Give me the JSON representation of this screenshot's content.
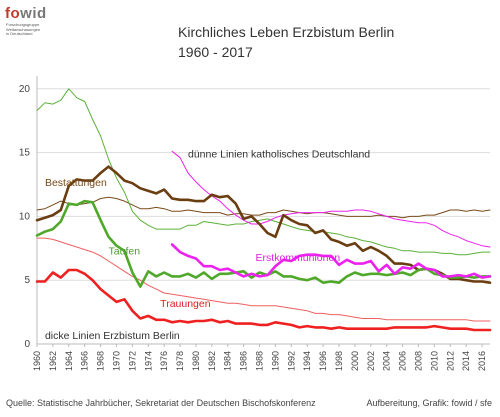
{
  "logo": {
    "text_f": "f",
    "text_o": "o",
    "text_w": "wid",
    "subtitle_lines": [
      "Forschungsgruppe",
      "Weltanschauungen",
      "in Deutschland"
    ]
  },
  "header": {
    "title": "Kirchliches Leben Erzbistum Berlin",
    "subtitle": "1960 - 2017"
  },
  "footer": {
    "source": "Quelle: Statistische Jahrbücher, Sekretariat der Deutschen Bischofskonferenz",
    "credit": "Aufbereitung, Grafik: fowid / sfe"
  },
  "chart_data": {
    "type": "line",
    "xlim": [
      1960,
      2017
    ],
    "ylim": [
      0,
      21
    ],
    "yticks": [
      0,
      5,
      10,
      15,
      20
    ],
    "xticks": [
      1960,
      1962,
      1964,
      1966,
      1968,
      1970,
      1972,
      1974,
      1976,
      1978,
      1980,
      1982,
      1984,
      1986,
      1988,
      1990,
      1992,
      1994,
      1996,
      1998,
      2000,
      2002,
      2004,
      2006,
      2008,
      2010,
      2012,
      2014,
      2016
    ],
    "grid": "horizontal",
    "annotations": [
      {
        "text": "dünne Linien katholisches Deutschland",
        "x": 1979,
        "y": 14.6,
        "color": "#333333"
      },
      {
        "text": "dicke Linien Erzbistum Berlin",
        "x": 1961,
        "y": 0.4,
        "color": "#333333"
      },
      {
        "text": "Bestattungen",
        "x": 1961,
        "y": 12.4,
        "color": "#7a4a1a"
      },
      {
        "text": "Taufen",
        "x": 1969,
        "y": 7.0,
        "color": "#4a9a2a"
      },
      {
        "text": "Erstkommunionen",
        "x": 1987.5,
        "y": 6.5,
        "color": "#e020e0"
      },
      {
        "text": "Trauungen",
        "x": 1975.5,
        "y": 2.9,
        "color": "#e02020"
      }
    ],
    "series": [
      {
        "key": "bestattungen_berlin",
        "color": "#6b3e12",
        "width": 2.6,
        "x": [
          1960,
          1961,
          1962,
          1963,
          1964,
          1965,
          1966,
          1967,
          1968,
          1969,
          1970,
          1971,
          1972,
          1973,
          1974,
          1975,
          1976,
          1977,
          1978,
          1979,
          1980,
          1981,
          1982,
          1983,
          1984,
          1985,
          1986,
          1987,
          1988,
          1989,
          1990,
          1991,
          1992,
          1993,
          1994,
          1995,
          1996,
          1997,
          1998,
          1999,
          2000,
          2001,
          2002,
          2003,
          2004,
          2005,
          2006,
          2007,
          2008,
          2009,
          2010,
          2011,
          2012,
          2013,
          2014,
          2015,
          2016,
          2017
        ],
        "y": [
          9.7,
          9.9,
          10.1,
          10.5,
          12.4,
          12.9,
          12.8,
          12.8,
          13.4,
          13.9,
          13.4,
          12.8,
          12.6,
          12.2,
          12.0,
          11.8,
          12.1,
          11.4,
          11.3,
          11.3,
          11.2,
          11.2,
          11.7,
          11.5,
          11.6,
          11.0,
          9.8,
          10.0,
          9.4,
          8.7,
          8.4,
          10.1,
          9.7,
          9.4,
          9.3,
          8.7,
          8.9,
          8.2,
          8.0,
          7.7,
          7.9,
          7.3,
          7.6,
          7.3,
          6.9,
          6.3,
          6.3,
          6.2,
          5.8,
          5.9,
          5.8,
          5.5,
          5.1,
          5.1,
          5.0,
          4.9,
          4.9,
          4.8
        ]
      },
      {
        "key": "taufen_berlin",
        "color": "#4fa82a",
        "width": 2.6,
        "x": [
          1960,
          1961,
          1962,
          1963,
          1964,
          1965,
          1966,
          1967,
          1968,
          1969,
          1970,
          1971,
          1972,
          1973,
          1974,
          1975,
          1976,
          1977,
          1978,
          1979,
          1980,
          1981,
          1982,
          1983,
          1984,
          1985,
          1986,
          1987,
          1988,
          1989,
          1990,
          1991,
          1992,
          1993,
          1994,
          1995,
          1996,
          1997,
          1998,
          1999,
          2000,
          2001,
          2002,
          2003,
          2004,
          2005,
          2006,
          2007,
          2008,
          2009,
          2010,
          2011,
          2012,
          2013,
          2014,
          2015,
          2016,
          2017
        ],
        "y": [
          8.5,
          8.8,
          9.0,
          9.6,
          11.0,
          10.9,
          11.2,
          11.1,
          9.7,
          8.4,
          7.7,
          7.3,
          5.6,
          4.5,
          5.7,
          5.3,
          5.6,
          5.3,
          5.3,
          5.5,
          5.2,
          5.6,
          5.1,
          5.5,
          5.5,
          5.6,
          5.7,
          5.2,
          5.6,
          5.4,
          5.7,
          5.3,
          5.3,
          5.1,
          5.0,
          5.2,
          4.8,
          4.9,
          4.8,
          5.3,
          5.6,
          5.4,
          5.5,
          5.5,
          5.4,
          5.5,
          5.6,
          5.4,
          5.8,
          5.9,
          5.5,
          5.4,
          5.2,
          5.2,
          5.3,
          5.2,
          5.3,
          5.3
        ]
      },
      {
        "key": "erstkommunionen_berlin",
        "color": "#ee22ee",
        "width": 2.6,
        "x": [
          1977,
          1978,
          1979,
          1980,
          1981,
          1982,
          1983,
          1984,
          1985,
          1986,
          1987,
          1988,
          1989,
          1990,
          1991,
          1992,
          1993,
          1994,
          1995,
          1996,
          1997,
          1998,
          1999,
          2000,
          2001,
          2002,
          2003,
          2004,
          2005,
          2006,
          2007,
          2008,
          2009,
          2010,
          2011,
          2012,
          2013,
          2014,
          2015,
          2016,
          2017
        ],
        "y": [
          7.8,
          7.2,
          6.9,
          6.7,
          6.1,
          6.1,
          5.8,
          5.9,
          5.6,
          5.3,
          5.5,
          5.3,
          5.4,
          6.1,
          6.6,
          6.5,
          6.9,
          7.0,
          7.0,
          6.9,
          6.9,
          6.2,
          6.6,
          6.3,
          6.3,
          6.5,
          5.7,
          6.2,
          5.5,
          6.0,
          5.9,
          6.3,
          5.9,
          5.8,
          5.3,
          5.3,
          5.4,
          5.3,
          5.5,
          5.2,
          5.3
        ]
      },
      {
        "key": "trauungen_berlin",
        "color": "#ee2020",
        "width": 2.6,
        "x": [
          1960,
          1961,
          1962,
          1963,
          1964,
          1965,
          1966,
          1967,
          1968,
          1969,
          1970,
          1971,
          1972,
          1973,
          1974,
          1975,
          1976,
          1977,
          1978,
          1979,
          1980,
          1981,
          1982,
          1983,
          1984,
          1985,
          1986,
          1987,
          1988,
          1989,
          1990,
          1991,
          1992,
          1993,
          1994,
          1995,
          1996,
          1997,
          1998,
          1999,
          2000,
          2001,
          2002,
          2003,
          2004,
          2005,
          2006,
          2007,
          2008,
          2009,
          2010,
          2011,
          2012,
          2013,
          2014,
          2015,
          2016,
          2017
        ],
        "y": [
          4.9,
          4.9,
          5.6,
          5.2,
          5.8,
          5.8,
          5.5,
          5.0,
          4.3,
          3.8,
          3.3,
          3.5,
          2.6,
          2.0,
          2.2,
          1.9,
          1.9,
          1.7,
          1.8,
          1.7,
          1.8,
          1.8,
          1.9,
          1.7,
          1.8,
          1.6,
          1.6,
          1.6,
          1.5,
          1.5,
          1.7,
          1.6,
          1.5,
          1.3,
          1.4,
          1.3,
          1.3,
          1.2,
          1.3,
          1.2,
          1.2,
          1.2,
          1.2,
          1.2,
          1.2,
          1.3,
          1.3,
          1.3,
          1.3,
          1.3,
          1.4,
          1.3,
          1.2,
          1.2,
          1.2,
          1.1,
          1.1,
          1.1
        ]
      },
      {
        "key": "bestattungen_de",
        "color": "#7a4a1a",
        "width": 1,
        "x": [
          1960,
          1961,
          1962,
          1963,
          1964,
          1965,
          1966,
          1967,
          1968,
          1969,
          1970,
          1971,
          1972,
          1973,
          1974,
          1975,
          1976,
          1977,
          1978,
          1979,
          1980,
          1981,
          1982,
          1983,
          1984,
          1985,
          1986,
          1987,
          1988,
          1989,
          1990,
          1991,
          1992,
          1993,
          1994,
          1995,
          1996,
          1997,
          1998,
          1999,
          2000,
          2001,
          2002,
          2003,
          2004,
          2005,
          2006,
          2007,
          2008,
          2009,
          2010,
          2011,
          2012,
          2013,
          2014,
          2015,
          2016,
          2017
        ],
        "y": [
          10.5,
          10.6,
          10.9,
          11.2,
          11.0,
          10.9,
          11.0,
          11.1,
          11.4,
          11.5,
          11.4,
          11.2,
          10.9,
          10.6,
          10.6,
          10.7,
          10.6,
          10.4,
          10.4,
          10.5,
          10.4,
          10.3,
          10.3,
          10.3,
          10.1,
          10.2,
          10.2,
          10.1,
          10.1,
          10.3,
          10.3,
          10.5,
          10.4,
          10.3,
          10.2,
          10.3,
          10.3,
          10.2,
          10.1,
          10.0,
          10.0,
          10.0,
          10.0,
          10.1,
          10.0,
          10.0,
          9.9,
          10.0,
          10.0,
          10.1,
          10.1,
          10.3,
          10.5,
          10.5,
          10.4,
          10.5,
          10.4,
          10.5
        ]
      },
      {
        "key": "taufen_de",
        "color": "#5cb03a",
        "width": 1,
        "x": [
          1960,
          1961,
          1962,
          1963,
          1964,
          1965,
          1966,
          1967,
          1968,
          1969,
          1970,
          1971,
          1972,
          1973,
          1974,
          1975,
          1976,
          1977,
          1978,
          1979,
          1980,
          1981,
          1982,
          1983,
          1984,
          1985,
          1986,
          1987,
          1988,
          1989,
          1990,
          1991,
          1992,
          1993,
          1994,
          1995,
          1996,
          1997,
          1998,
          1999,
          2000,
          2001,
          2002,
          2003,
          2004,
          2005,
          2006,
          2007,
          2008,
          2009,
          2010,
          2011,
          2012,
          2013,
          2014,
          2015,
          2016,
          2017
        ],
        "y": [
          18.3,
          18.9,
          18.8,
          19.1,
          20.0,
          19.3,
          19.0,
          17.6,
          16.3,
          14.5,
          13.0,
          11.9,
          10.4,
          9.7,
          9.3,
          9.0,
          9.0,
          9.0,
          9.0,
          9.3,
          9.3,
          9.6,
          9.5,
          9.4,
          9.3,
          9.4,
          9.4,
          9.6,
          9.7,
          9.8,
          9.6,
          9.4,
          9.2,
          9.0,
          8.9,
          8.8,
          8.8,
          8.7,
          8.6,
          8.4,
          8.3,
          8.1,
          8.0,
          7.8,
          7.6,
          7.5,
          7.3,
          7.3,
          7.2,
          7.2,
          7.2,
          7.1,
          7.1,
          7.0,
          7.0,
          7.1,
          7.2,
          7.2
        ]
      },
      {
        "key": "erstkommunionen_de",
        "color": "#ee22ee",
        "width": 1,
        "x": [
          1977,
          1978,
          1979,
          1980,
          1981,
          1982,
          1983,
          1984,
          1985,
          1986,
          1987,
          1988,
          1989,
          1990,
          1991,
          1992,
          1993,
          1994,
          1995,
          1996,
          1997,
          1998,
          1999,
          2000,
          2001,
          2002,
          2003,
          2004,
          2005,
          2006,
          2007,
          2008,
          2009,
          2010,
          2011,
          2012,
          2013,
          2014,
          2015,
          2016,
          2017
        ],
        "y": [
          15.1,
          14.6,
          13.4,
          12.7,
          12.1,
          11.6,
          11.2,
          10.6,
          10.1,
          9.7,
          9.4,
          9.4,
          9.6,
          9.9,
          10.1,
          10.2,
          10.3,
          10.3,
          10.3,
          10.3,
          10.4,
          10.4,
          10.4,
          10.5,
          10.5,
          10.4,
          10.2,
          10.0,
          9.8,
          9.7,
          9.6,
          9.5,
          9.5,
          9.3,
          8.9,
          8.6,
          8.4,
          8.1,
          7.9,
          7.7,
          7.6
        ]
      },
      {
        "key": "trauungen_de",
        "color": "#ee6060",
        "width": 1,
        "x": [
          1960,
          1961,
          1962,
          1963,
          1964,
          1965,
          1966,
          1967,
          1968,
          1969,
          1970,
          1971,
          1972,
          1973,
          1974,
          1975,
          1976,
          1977,
          1978,
          1979,
          1980,
          1981,
          1982,
          1983,
          1984,
          1985,
          1986,
          1987,
          1988,
          1989,
          1990,
          1991,
          1992,
          1993,
          1994,
          1995,
          1996,
          1997,
          1998,
          1999,
          2000,
          2001,
          2002,
          2003,
          2004,
          2005,
          2006,
          2007,
          2008,
          2009,
          2010,
          2011,
          2012,
          2013,
          2014,
          2015,
          2016,
          2017
        ],
        "y": [
          8.3,
          8.3,
          8.2,
          8.0,
          7.8,
          7.6,
          7.4,
          7.2,
          6.9,
          6.5,
          6.1,
          5.7,
          5.3,
          5.0,
          4.6,
          4.3,
          4.0,
          3.9,
          3.8,
          3.7,
          3.6,
          3.5,
          3.4,
          3.3,
          3.2,
          3.2,
          3.1,
          3.0,
          3.0,
          3.0,
          3.0,
          2.9,
          2.8,
          2.7,
          2.6,
          2.4,
          2.4,
          2.3,
          2.3,
          2.2,
          2.1,
          2.0,
          2.0,
          2.0,
          1.9,
          1.9,
          1.9,
          1.9,
          1.9,
          1.9,
          1.9,
          1.9,
          1.9,
          1.9,
          1.9,
          1.8,
          1.8,
          1.8
        ]
      }
    ]
  }
}
